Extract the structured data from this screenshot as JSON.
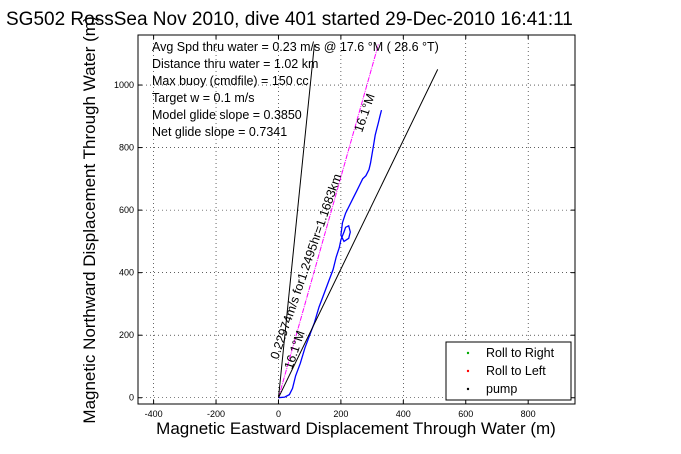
{
  "chart_data": {
    "type": "line",
    "title": "SG502 RossSea Nov 2010, dive 401 started 29-Dec-2010 16:41:11",
    "xlabel": "Magnetic Eastward Displacement Through Water (m)",
    "ylabel": "Magnetic Northward Displacement Through Water (m)",
    "xlim": [
      -450,
      950
    ],
    "ylim": [
      -20,
      1160
    ],
    "xticks": [
      -400,
      -200,
      0,
      200,
      400,
      600,
      800
    ],
    "yticks": [
      0,
      200,
      400,
      600,
      800,
      1000
    ],
    "grid": true,
    "legend_position": "bottom-right",
    "annotations": [
      "Avg Spd thru water =  0.23 m/s @  17.6   °M ( 28.6 °T)",
      "Distance thru water =  1.02 km",
      "Max buoy (cmdfile) = 150 cc",
      "Target w = 0.1 m/s",
      "Model glide slope = 0.3850",
      "Net glide slope = 0.7341"
    ],
    "line_labels": {
      "heading_line": "0.22974m/s for1.2495hr=1.1683km",
      "heading_deg_upper": "16.1°M",
      "heading_deg_lower": "16.1°M"
    },
    "legend": [
      "Roll to Right",
      "Roll to Left",
      "pump"
    ],
    "colors": {
      "track": "#0000ff",
      "heading": "#ff00ff",
      "roll_right": "#00aa00",
      "roll_left": "#ff0000",
      "pump": "#000000",
      "reference": "#000000"
    },
    "series": [
      {
        "name": "",
        "role": "track",
        "x": [
          0,
          20,
          35,
          45,
          55,
          70,
          85,
          100,
          115,
          130,
          145,
          160,
          175,
          185,
          195,
          200,
          210,
          215,
          225,
          230,
          225,
          210,
          200,
          205,
          215,
          225,
          240,
          250,
          260,
          270,
          280,
          290,
          295,
          300,
          305,
          310,
          315,
          320,
          325,
          330
        ],
        "y": [
          0,
          2,
          10,
          30,
          70,
          110,
          160,
          200,
          240,
          290,
          330,
          370,
          410,
          450,
          480,
          505,
          530,
          545,
          550,
          530,
          510,
          500,
          520,
          560,
          590,
          610,
          640,
          660,
          680,
          700,
          710,
          730,
          750,
          780,
          810,
          840,
          860,
          880,
          900,
          920
        ]
      },
      {
        "name": "",
        "role": "heading",
        "x": [
          0,
          320
        ],
        "y": [
          0,
          1130
        ]
      },
      {
        "name": "",
        "role": "reference",
        "x": [
          0,
          115
        ],
        "y": [
          0,
          1130
        ]
      },
      {
        "name": "",
        "role": "reference",
        "x": [
          0,
          510
        ],
        "y": [
          0,
          1050
        ]
      }
    ]
  }
}
